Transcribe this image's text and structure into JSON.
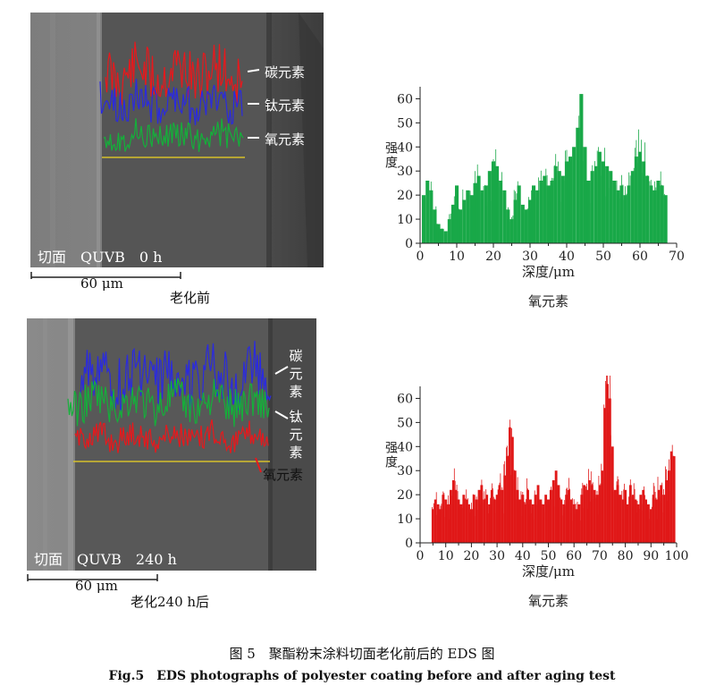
{
  "panel_top": {
    "sem_label": "切面　QUVB　0 h",
    "element_labels": [
      "碳元素",
      "钛元素",
      "氧元素"
    ],
    "scale_bar": "60 μm",
    "caption": "老化前"
  },
  "panel_bottom": {
    "sem_label": "切面　QUVB　240 h",
    "element_labels": [
      "碳元素",
      "钛元素",
      "氧元素"
    ],
    "scale_bar": "60 μm",
    "caption": "老化240 h后"
  },
  "colors": {
    "carbon": "#e8181c",
    "titanium": "#2a2ae0",
    "oxygen": "#14b03a",
    "chart_top": "#19a848",
    "chart_bottom": "#e01818"
  },
  "chart_data": [
    {
      "type": "bar",
      "ylabel": "强度",
      "xlabel": "深度/μm",
      "title": "氧元素",
      "xlim": [
        0,
        70
      ],
      "ylim": [
        0,
        65
      ],
      "xticks": [
        0,
        10,
        20,
        30,
        40,
        50,
        60,
        70
      ],
      "yticks": [
        0,
        10,
        20,
        30,
        40,
        50,
        60
      ],
      "x_start": 1,
      "x_end": 67.5,
      "x": [
        1,
        2,
        3,
        4,
        5,
        6,
        7,
        8,
        9,
        10,
        11,
        12,
        13,
        14,
        15,
        16,
        17,
        18,
        19,
        20,
        21,
        22,
        23,
        24,
        25,
        26,
        27,
        28,
        29,
        30,
        31,
        32,
        33,
        34,
        35,
        36,
        37,
        38,
        39,
        40,
        41,
        42,
        43,
        44,
        45,
        46,
        47,
        48,
        49,
        50,
        51,
        52,
        53,
        54,
        55,
        56,
        57,
        58,
        59,
        60,
        61,
        62,
        63,
        64,
        65,
        66,
        67
      ],
      "values": [
        20,
        26,
        22,
        14,
        8,
        6,
        5,
        10,
        16,
        24,
        14,
        18,
        22,
        20,
        25,
        28,
        22,
        24,
        30,
        34,
        32,
        26,
        22,
        14,
        10,
        18,
        24,
        16,
        14,
        18,
        24,
        22,
        26,
        28,
        24,
        26,
        32,
        30,
        28,
        34,
        36,
        40,
        48,
        62,
        40,
        26,
        30,
        32,
        38,
        34,
        32,
        30,
        26,
        22,
        24,
        20,
        24,
        30,
        36,
        38,
        34,
        28,
        24,
        22,
        26,
        24,
        20
      ]
    },
    {
      "type": "bar",
      "ylabel": "强度",
      "xlabel": "深度/μm",
      "title": "氧元素",
      "xlim": [
        0,
        100
      ],
      "ylim": [
        0,
        65
      ],
      "xticks": [
        0,
        10,
        20,
        30,
        40,
        50,
        60,
        70,
        80,
        90,
        100
      ],
      "yticks": [
        0,
        10,
        20,
        30,
        40,
        50,
        60
      ],
      "x_start": 5,
      "x_end": 99,
      "x": [
        5,
        6,
        7,
        8,
        9,
        10,
        11,
        12,
        13,
        14,
        15,
        16,
        17,
        18,
        19,
        20,
        21,
        22,
        23,
        24,
        25,
        26,
        27,
        28,
        29,
        30,
        31,
        32,
        33,
        34,
        35,
        36,
        37,
        38,
        39,
        40,
        41,
        42,
        43,
        44,
        45,
        46,
        47,
        48,
        49,
        50,
        51,
        52,
        53,
        54,
        55,
        56,
        57,
        58,
        59,
        60,
        61,
        62,
        63,
        64,
        65,
        66,
        67,
        68,
        69,
        70,
        71,
        72,
        73,
        74,
        75,
        76,
        77,
        78,
        79,
        80,
        81,
        82,
        83,
        84,
        85,
        86,
        87,
        88,
        89,
        90,
        91,
        92,
        93,
        94,
        95,
        96,
        97,
        98,
        99
      ],
      "values": [
        14,
        18,
        16,
        14,
        20,
        18,
        16,
        22,
        26,
        22,
        18,
        16,
        20,
        18,
        16,
        14,
        20,
        18,
        22,
        24,
        18,
        20,
        16,
        22,
        18,
        20,
        24,
        22,
        28,
        36,
        48,
        44,
        30,
        22,
        18,
        20,
        16,
        22,
        18,
        16,
        20,
        24,
        18,
        16,
        20,
        18,
        22,
        26,
        30,
        24,
        18,
        16,
        20,
        22,
        18,
        16,
        14,
        16,
        20,
        24,
        22,
        26,
        24,
        22,
        20,
        24,
        30,
        56,
        66,
        60,
        40,
        22,
        24,
        20,
        18,
        22,
        16,
        24,
        20,
        18,
        16,
        20,
        22,
        18,
        16,
        14,
        20,
        18,
        22,
        24,
        20,
        26,
        30,
        38,
        36
      ]
    }
  ],
  "figure_caption_cn": "图 5　聚酯粉末涂料切面老化前后的 EDS 图",
  "figure_caption_en": "Fig.5　EDS photographs of polyester coating before and after aging test"
}
